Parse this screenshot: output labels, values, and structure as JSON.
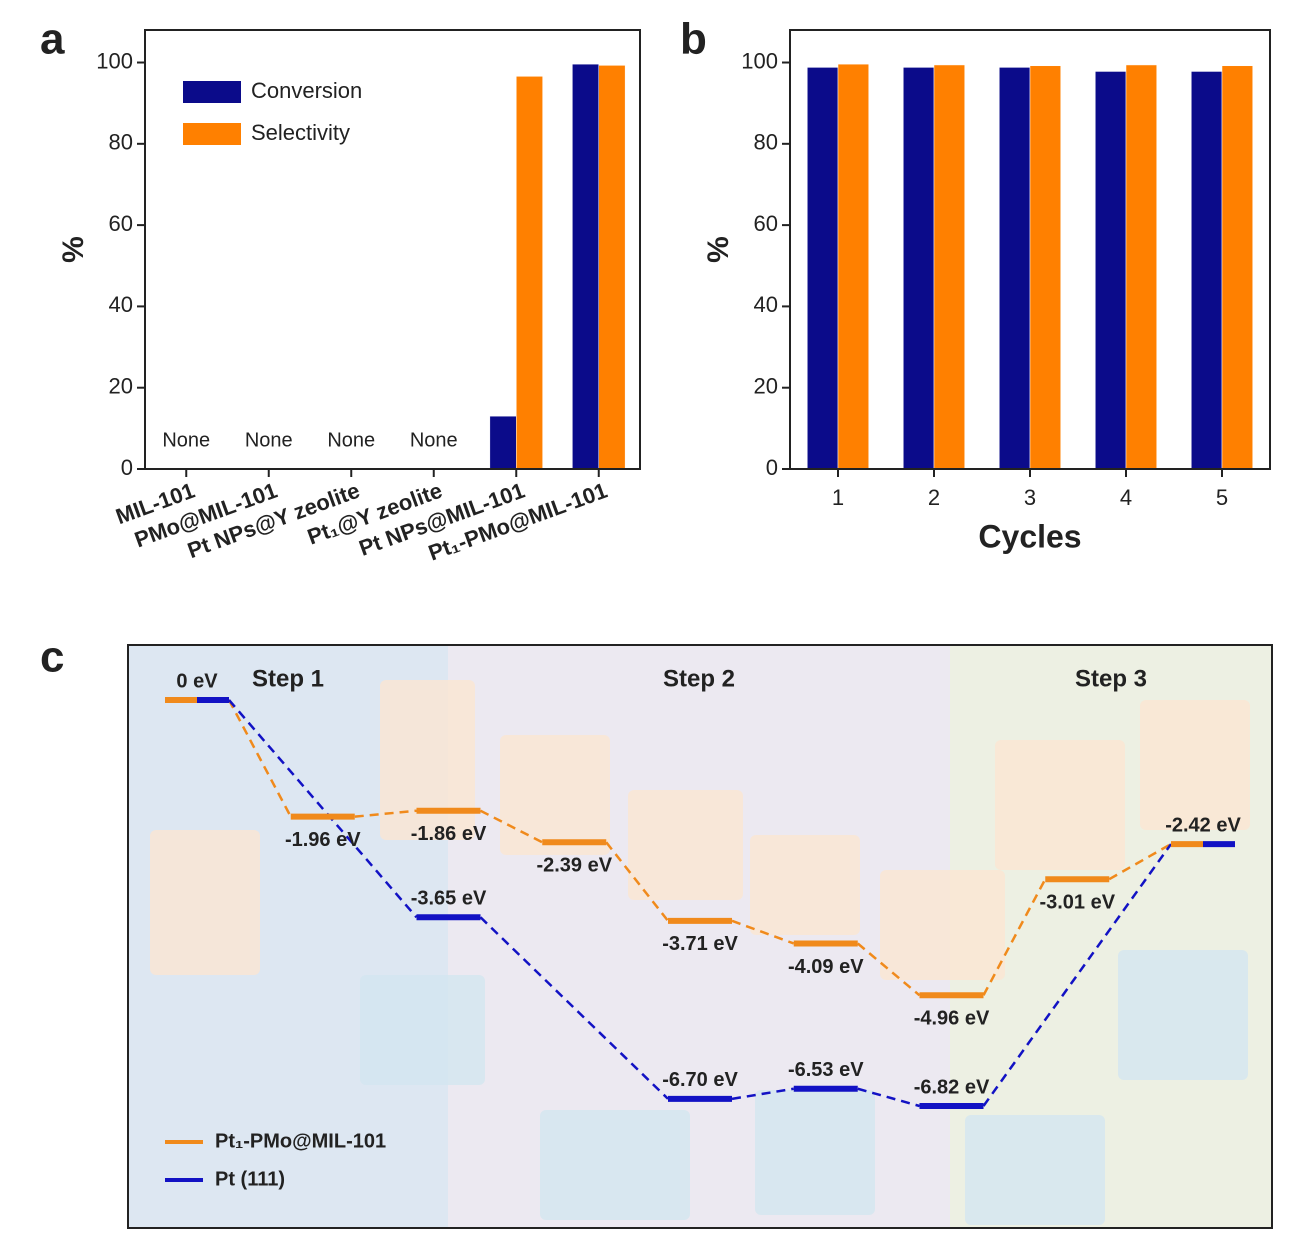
{
  "chart_data": [
    {
      "type": "bar",
      "panel": "a",
      "ylabel": "%",
      "categories": [
        "MIL-101",
        "PMo@MIL-101",
        "Pt NPs@Y zeolite",
        "Pt₁@Y zeolite",
        "Pt NPs@MIL-101",
        "Pt₁-PMo@MIL-101"
      ],
      "series": [
        {
          "name": "Conversion",
          "color": "#0b0b8a",
          "values": [
            null,
            null,
            null,
            null,
            13,
            99.6
          ],
          "value_labels": [
            "None",
            "None",
            "None",
            "None",
            null,
            null
          ]
        },
        {
          "name": "Selectivity",
          "color": "#ff8000",
          "values": [
            null,
            null,
            null,
            null,
            96.6,
            99.3
          ]
        }
      ],
      "ylim": [
        0,
        108
      ],
      "yticks": [
        0,
        20,
        40,
        60,
        80,
        100
      ],
      "legend": "upper left"
    },
    {
      "type": "bar",
      "panel": "b",
      "xlabel": "Cycles",
      "ylabel": "%",
      "categories": [
        "1",
        "2",
        "3",
        "4",
        "5"
      ],
      "series": [
        {
          "name": "Conversion",
          "color": "#0b0b8a",
          "values": [
            98.8,
            98.8,
            98.8,
            97.8,
            97.8
          ]
        },
        {
          "name": "Selectivity",
          "color": "#ff8000",
          "values": [
            99.6,
            99.4,
            99.2,
            99.4,
            99.2
          ]
        }
      ],
      "ylim": [
        0,
        108
      ],
      "yticks": [
        0,
        20,
        40,
        60,
        80,
        100
      ]
    },
    {
      "type": "energy_profile",
      "panel": "c",
      "steps": [
        "Step 1",
        "Step 2",
        "Step 3"
      ],
      "series": [
        {
          "name": "Pt₁-PMo@MIL-101",
          "color": "#f08a1c",
          "values": [
            0,
            -1.96,
            -1.86,
            -2.39,
            -3.71,
            -4.09,
            -4.96,
            -3.01,
            -2.42
          ],
          "value_labels": [
            null,
            "-1.96 eV",
            "-1.86 eV",
            "-2.39 eV",
            "-3.71 eV",
            "-4.09 eV",
            "-4.96 eV",
            "-3.01 eV",
            null
          ]
        },
        {
          "name": "Pt (111)",
          "color": "#1212c4",
          "values": [
            0,
            null,
            -3.65,
            null,
            -6.7,
            -6.53,
            -6.82,
            null,
            -2.42
          ],
          "value_labels": [
            "0 eV",
            null,
            "-3.65 eV",
            null,
            "-6.70 eV",
            "-6.53 eV",
            "-6.82 eV",
            null,
            "-2.42 eV"
          ]
        }
      ]
    }
  ]
}
